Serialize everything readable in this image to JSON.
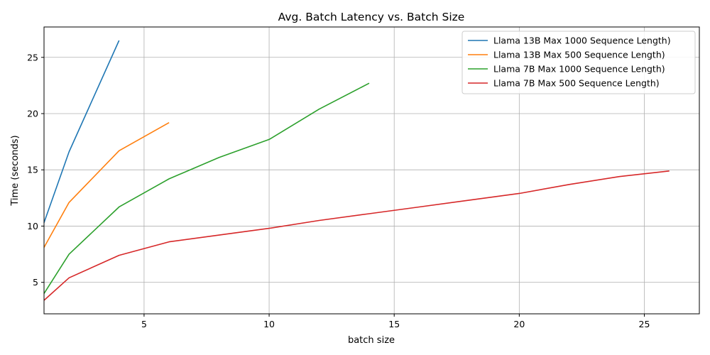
{
  "chart_data": {
    "type": "line",
    "title": "Avg. Batch Latency vs. Batch Size",
    "xlabel": "batch size",
    "ylabel": "Time (seconds)",
    "xlim": [
      1,
      27.2
    ],
    "ylim": [
      2.2,
      27.7
    ],
    "xticks": [
      5,
      10,
      15,
      20,
      25
    ],
    "yticks": [
      5,
      10,
      15,
      20,
      25
    ],
    "grid": true,
    "legend_position": "top-right",
    "series": [
      {
        "name": "Llama 13B Max 1000 Sequence Length)",
        "color": "#1f77b4",
        "x": [
          1,
          2,
          4
        ],
        "y": [
          10.3,
          16.6,
          26.5
        ]
      },
      {
        "name": "Llama 13B Max 500 Sequence Length)",
        "color": "#ff7f0e",
        "x": [
          1,
          2,
          4,
          6
        ],
        "y": [
          8.1,
          12.1,
          16.7,
          19.2
        ]
      },
      {
        "name": "Llama 7B Max 1000 Sequence Length)",
        "color": "#2ca02c",
        "x": [
          1,
          2,
          4,
          6,
          8,
          10,
          12,
          14
        ],
        "y": [
          4.0,
          7.5,
          11.7,
          14.2,
          16.1,
          17.7,
          20.4,
          22.7
        ]
      },
      {
        "name": "Llama 7B Max 500 Sequence Length)",
        "color": "#d62728",
        "x": [
          1,
          2,
          4,
          6,
          8,
          10,
          12,
          14,
          16,
          18,
          20,
          22,
          24,
          26
        ],
        "y": [
          3.4,
          5.4,
          7.4,
          8.6,
          9.2,
          9.8,
          10.5,
          11.1,
          11.7,
          12.3,
          12.9,
          13.7,
          14.4,
          14.9
        ]
      }
    ]
  }
}
